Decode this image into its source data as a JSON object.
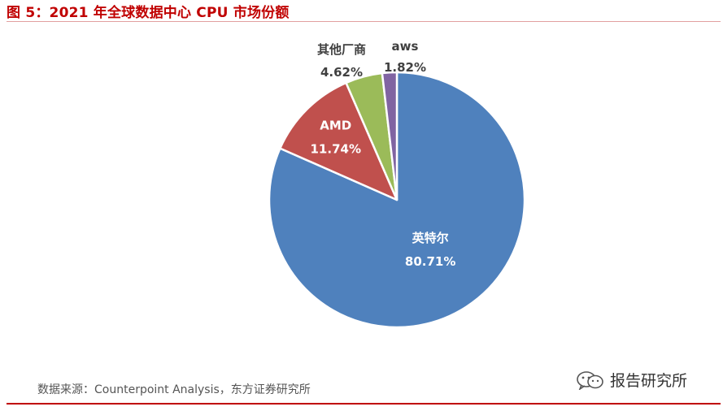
{
  "figure": {
    "title": "图 5：2021 年全球数据中心 CPU 市场份额",
    "source": "数据来源：Counterpoint Analysis，东方证券研究所",
    "watermark": "报告研究所"
  },
  "colors": {
    "title": "#c00000",
    "rule": "#c00000",
    "slice_intel": "#4f81bd",
    "slice_amd": "#c0504d",
    "slice_others": "#9bbb59",
    "slice_aws": "#8064a2"
  },
  "icons": {
    "watermark": "wechat-icon"
  },
  "chart_data": {
    "type": "pie",
    "title": "",
    "start": "12 o'clock",
    "direction": "clockwise",
    "slices": [
      {
        "label": "英特尔",
        "value": 80.71,
        "value_label": "80.71%",
        "color": "#4f81bd",
        "label_position": "inside"
      },
      {
        "label": "AMD",
        "value": 11.74,
        "value_label": "11.74%",
        "color": "#c0504d",
        "label_position": "inside"
      },
      {
        "label": "其他厂商",
        "value": 4.62,
        "value_label": "4.62%",
        "color": "#9bbb59",
        "label_position": "outside"
      },
      {
        "label": "aws",
        "value": 1.82,
        "value_label": "1.82%",
        "color": "#8064a2",
        "label_position": "outside"
      }
    ]
  }
}
